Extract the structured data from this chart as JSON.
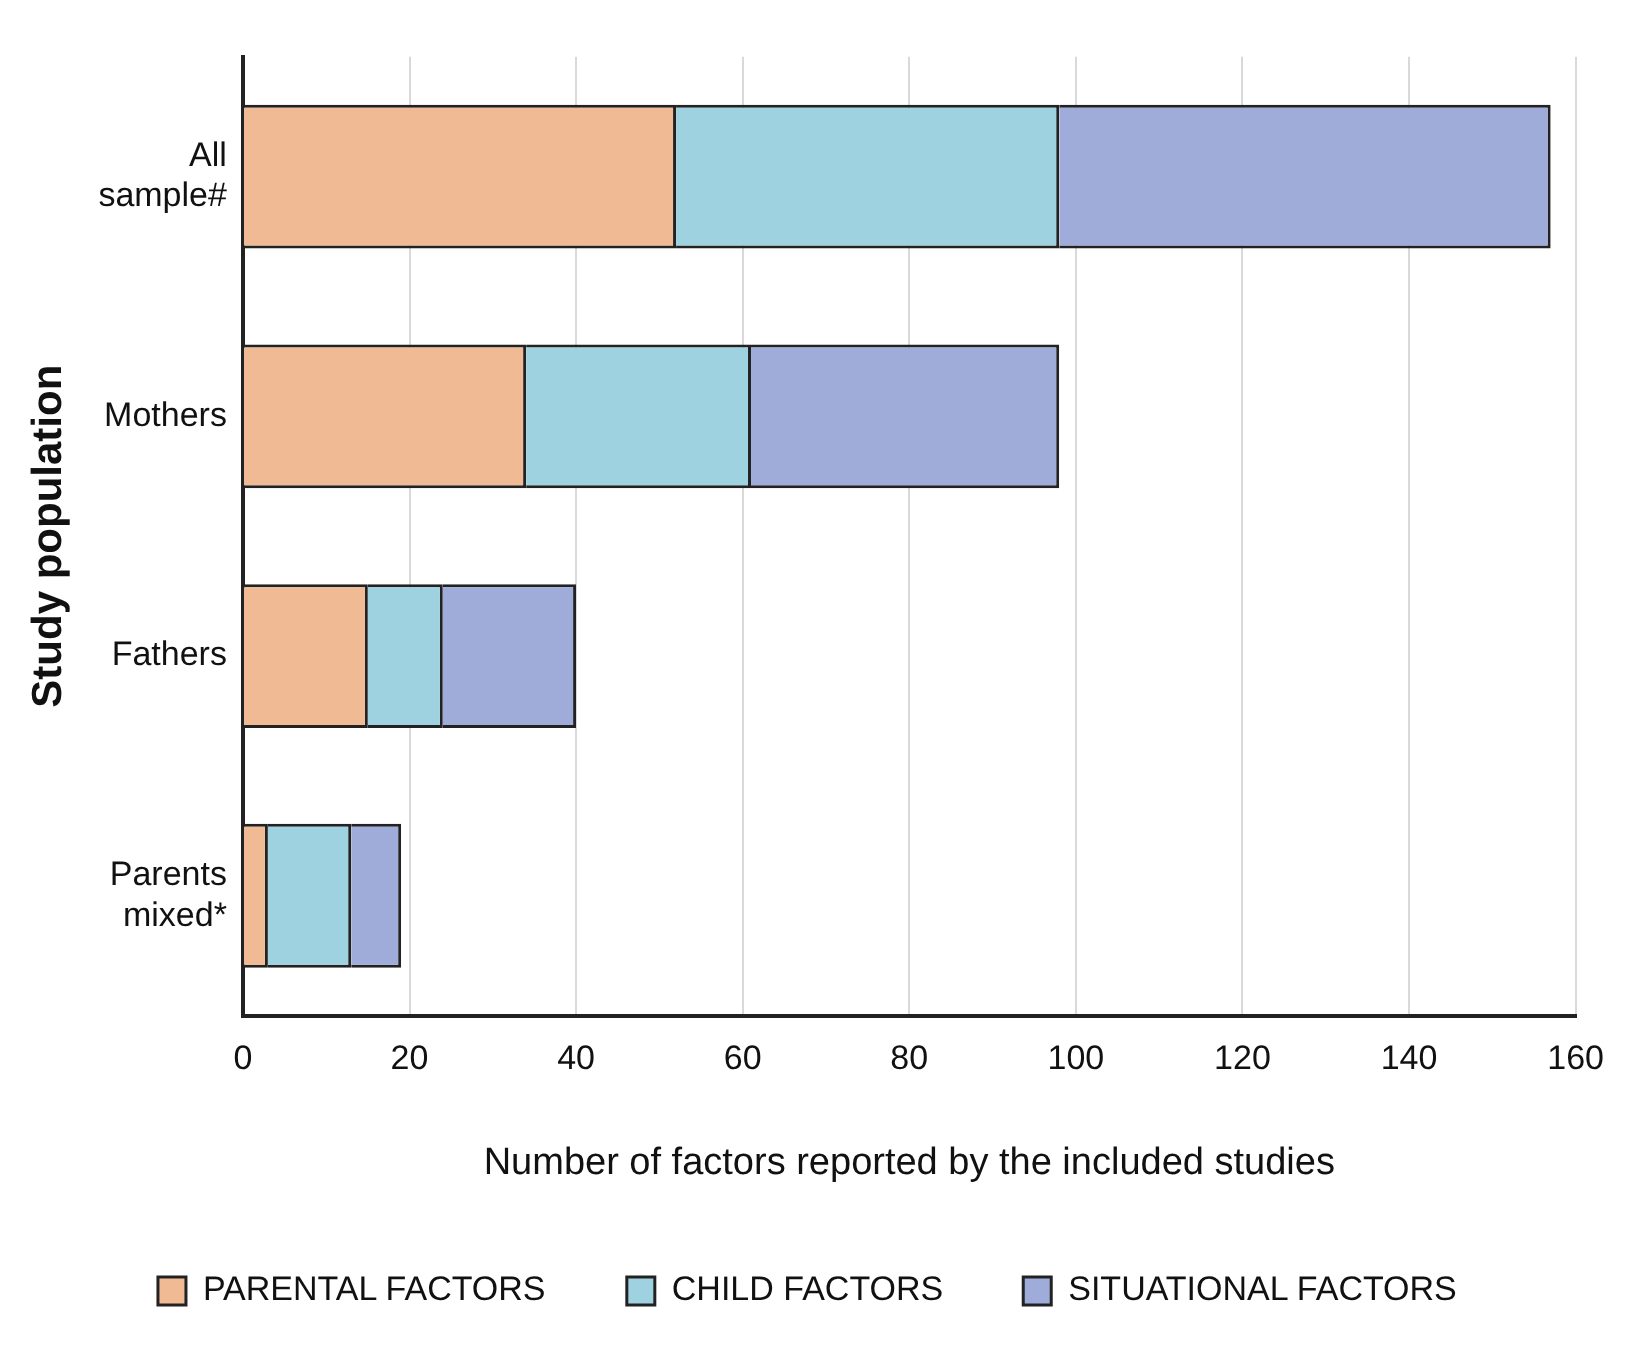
{
  "chart_data": {
    "type": "bar",
    "orientation": "horizontal",
    "stacked": true,
    "xlabel": "Number of factors reported by the included studies",
    "ylabel": "Study population",
    "categories": [
      "All sample#",
      "Mothers",
      "Fathers",
      "Parents mixed*"
    ],
    "series": [
      {
        "name": "PARENTAL FACTORS",
        "color": "#f0bb94",
        "values": [
          52,
          34,
          15,
          3
        ]
      },
      {
        "name": "CHILD FACTORS",
        "color": "#9fd2e0",
        "values": [
          46,
          27,
          9,
          10
        ]
      },
      {
        "name": "SITUATIONAL FACTORS",
        "color": "#9facda",
        "values": [
          59,
          37,
          16,
          6
        ]
      }
    ],
    "xlim": [
      0,
      160
    ],
    "xticks": [
      0,
      20,
      40,
      60,
      80,
      100,
      120,
      140,
      160
    ],
    "grid": "x",
    "legend": "bottom"
  }
}
